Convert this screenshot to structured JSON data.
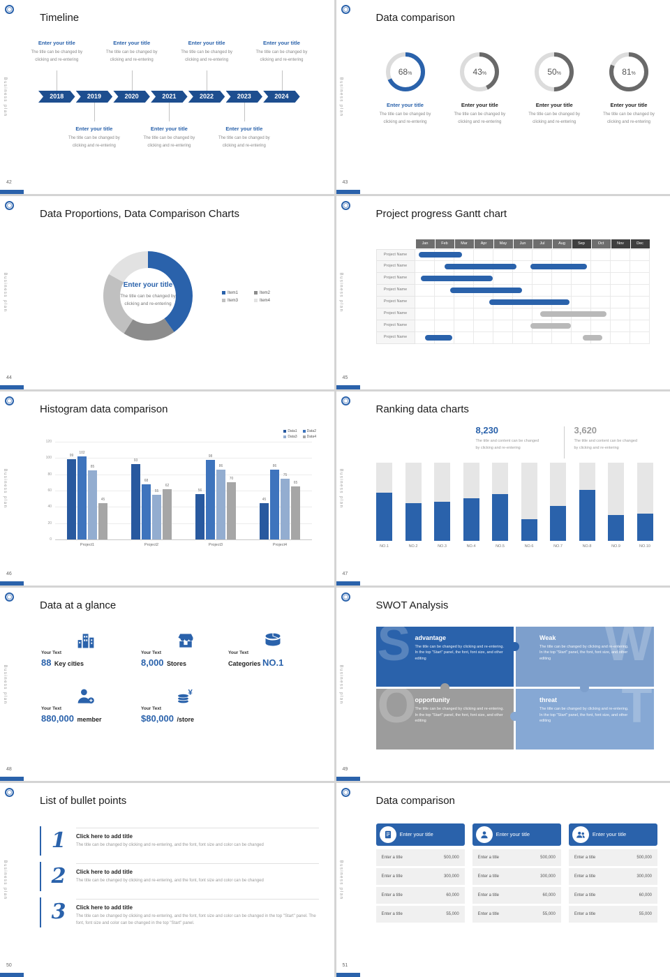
{
  "common": {
    "vertical_text": "Business plan",
    "accent": "#2a62ab"
  },
  "slides": {
    "timeline": {
      "number": "42",
      "title": "Timeline",
      "years": [
        "2018",
        "2019",
        "2020",
        "2021",
        "2022",
        "2023",
        "2024"
      ],
      "entry_title": "Enter your title",
      "entry_desc1": "The title can be changed by",
      "entry_desc2": "clicking and re-entering",
      "top_positions": [
        0,
        2,
        4,
        6
      ],
      "bottom_positions": [
        1,
        3,
        5
      ]
    },
    "data_comparison": {
      "number": "43",
      "title": "Data comparison",
      "entry_title": "Enter your title",
      "entry_desc1": "The title can be changed by",
      "entry_desc2": "clicking and re-entering",
      "rings": [
        {
          "percent": 68,
          "color": "#2a62ab",
          "title_color": "#2a62ab"
        },
        {
          "percent": 43,
          "color": "#696969",
          "title_color": "#222222"
        },
        {
          "percent": 50,
          "color": "#696969",
          "title_color": "#222222"
        },
        {
          "percent": 81,
          "color": "#696969",
          "title_color": "#222222"
        }
      ]
    },
    "proportions": {
      "number": "44",
      "title": "Data Proportions, Data Comparison Charts",
      "center_title": "Enter your title",
      "center_desc1": "The title can be changed by",
      "center_desc2": "clicking and re-entering",
      "segments": [
        {
          "label": "Item1",
          "value": 40,
          "color": "#2a62ab"
        },
        {
          "label": "Item2",
          "value": 19,
          "color": "#8c8c8c"
        },
        {
          "label": "Item3",
          "value": 24,
          "color": "#c0c0c0"
        },
        {
          "label": "Item4",
          "value": 17,
          "color": "#e2e2e2"
        }
      ]
    },
    "gantt": {
      "number": "45",
      "title": "Project progress Gantt chart",
      "months": [
        "Jan",
        "Feb",
        "Mar",
        "Apr",
        "May",
        "Jun",
        "Jul",
        "Aug",
        "Sep",
        "Oct",
        "Nov",
        "Dec"
      ],
      "dark_months": [
        8,
        10,
        11
      ],
      "row_label": "Project Name",
      "rows": 8,
      "bars": [
        {
          "row": 0,
          "start": 0.2,
          "end": 2.4,
          "color": "blue"
        },
        {
          "row": 1,
          "start": 1.5,
          "end": 5.2,
          "color": "blue"
        },
        {
          "row": 1,
          "start": 5.9,
          "end": 8.8,
          "color": "blue"
        },
        {
          "row": 2,
          "start": 0.3,
          "end": 4.0,
          "color": "blue"
        },
        {
          "row": 3,
          "start": 1.8,
          "end": 5.5,
          "color": "blue"
        },
        {
          "row": 4,
          "start": 3.8,
          "end": 7.9,
          "color": "blue"
        },
        {
          "row": 5,
          "start": 6.4,
          "end": 9.8,
          "color": "gray"
        },
        {
          "row": 6,
          "start": 5.9,
          "end": 8.0,
          "color": "gray"
        },
        {
          "row": 7,
          "start": 0.5,
          "end": 1.9,
          "color": "blue"
        },
        {
          "row": 7,
          "start": 8.6,
          "end": 9.6,
          "color": "gray"
        }
      ]
    },
    "histogram": {
      "number": "46",
      "title": "Histogram data comparison",
      "categories": [
        "Project1",
        "Project2",
        "Project3",
        "Project4"
      ],
      "series": [
        {
          "name": "Data1",
          "color": "#28599f",
          "values": [
            99,
            93,
            56,
            45
          ]
        },
        {
          "name": "Data2",
          "color": "#3e74bd",
          "values": [
            102,
            68,
            98,
            86
          ]
        },
        {
          "name": "Data3",
          "color": "#93add0",
          "values": [
            85,
            55,
            86,
            75
          ]
        },
        {
          "name": "Data4",
          "color": "#a6a6a6",
          "values": [
            45,
            62,
            70,
            65
          ]
        }
      ],
      "y_ticks": [
        0,
        20,
        40,
        60,
        80,
        100,
        120
      ],
      "y_max": 120
    },
    "ranking": {
      "number": "47",
      "title": "Ranking data charts",
      "stat1": {
        "value": "8,230",
        "desc1": "The title and content can be changed",
        "desc2": "by clicking and re-entering"
      },
      "stat2": {
        "value": "3,620",
        "desc1": "The title and content can be changed",
        "desc2": "by clicking and re-entering"
      },
      "categories": [
        "NO.1",
        "NO.2",
        "NO.3",
        "NO.4",
        "NO.5",
        "NO.6",
        "NO.7",
        "NO.8",
        "NO.9",
        "NO.10"
      ],
      "values": [
        62,
        48,
        50,
        55,
        60,
        28,
        45,
        65,
        33,
        35
      ],
      "max": 100
    },
    "glance": {
      "number": "48",
      "title": "Data at a glance",
      "items": [
        {
          "icon": "city-icon",
          "label": "Your Text",
          "big": "88",
          "rest": "Key cities",
          "reverse": false
        },
        {
          "icon": "store-icon",
          "label": "Your Text",
          "big": "8,000",
          "rest": "Stores",
          "reverse": false
        },
        {
          "icon": "categories-icon",
          "label": "Your Text",
          "big": "NO.1",
          "rest": "Categories",
          "reverse": true
        },
        {
          "icon": "member-icon",
          "label": "Your Text",
          "big": "880,000",
          "rest": "member",
          "reverse": false
        },
        {
          "icon": "money-icon",
          "label": "Your Text",
          "big": "$80,000",
          "rest": "/store",
          "reverse": false
        }
      ]
    },
    "swot": {
      "number": "49",
      "title": "SWOT Analysis",
      "pieces": [
        {
          "letter": "S",
          "title": "advantage",
          "color": "#2a62ab",
          "desc": "The title can be changed by clicking and re-entering. In the top \"Start\" panel, the font, font size, and other editing"
        },
        {
          "letter": "W",
          "title": "Weak",
          "color": "#7d9fcc",
          "desc": "The title can be changed by clicking and re-entering. In the top \"Start\" panel, the font, font size, and other editing"
        },
        {
          "letter": "O",
          "title": "opportunity",
          "color": "#9c9c9c",
          "desc": "The title can be changed by clicking and re-entering. In the top \"Start\" panel, the font, font size, and other editing"
        },
        {
          "letter": "T",
          "title": "threat",
          "color": "#86a8d4",
          "desc": "The title can be changed by clicking and re-entering. In the top \"Start\" panel, the font, font size, and other editing"
        }
      ]
    },
    "bullets": {
      "number": "50",
      "title": "List of bullet points",
      "items": [
        {
          "num": "1",
          "title": "Click here to add title",
          "desc": "The title can be changed by clicking and re-entering, and the font, font size and color can be changed"
        },
        {
          "num": "2",
          "title": "Click here to add title",
          "desc": "The title can be changed by clicking and re-entering, and the font, font size and color can be changed"
        },
        {
          "num": "3",
          "title": "Click here to add title",
          "desc": "The title can be changed by clicking and re-entering, and the font, font size and color can be changed in the top \"Start\" panel. The font, font size and color can be changed in the top \"Start\" panel."
        }
      ]
    },
    "cards": {
      "number": "51",
      "title": "Data comparison",
      "header": "Enter your title",
      "row_label": "Enter a title",
      "values": [
        "500,000",
        "300,000",
        "60,000",
        "55,000"
      ],
      "card_count": 3
    }
  }
}
